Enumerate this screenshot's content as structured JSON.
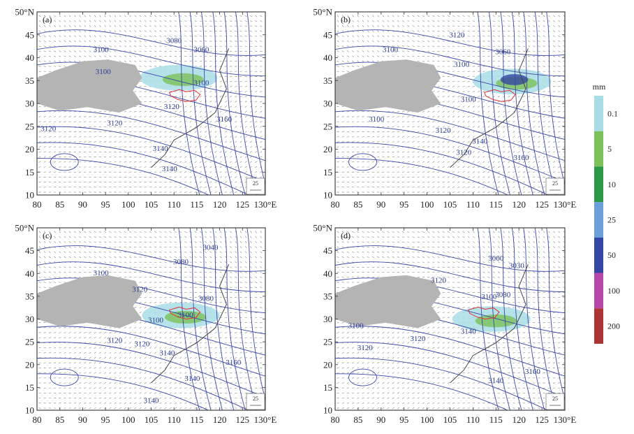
{
  "figure": {
    "x_ticks": [
      "80",
      "85",
      "90",
      "95",
      "100",
      "105",
      "110",
      "115",
      "120",
      "125",
      "130°E"
    ],
    "y_ticks": [
      "50°N",
      "45",
      "40",
      "35",
      "30",
      "25",
      "20",
      "15",
      "10"
    ],
    "wind_reference": "25",
    "colors": {
      "contour": "#3b47a8",
      "plateau": "#b4b4b4",
      "coast": "#444444",
      "basin_outline": "#e03030",
      "wind_vector": "#777777"
    },
    "panels": [
      {
        "label": "(a)",
        "contour_labels": [
          "3100",
          "3060",
          "3080",
          "3100",
          "3120",
          "3120",
          "3120",
          "3160",
          "3100",
          "3140",
          "3140"
        ]
      },
      {
        "label": "(b)",
        "contour_labels": [
          "3120",
          "3100",
          "3060",
          "3100",
          "3100",
          "3100",
          "3120",
          "3120",
          "3140",
          "3160"
        ]
      },
      {
        "label": "(c)",
        "contour_labels": [
          "3100",
          "3080",
          "3040",
          "3120",
          "3080",
          "3100",
          "3100",
          "3120",
          "3120",
          "3140",
          "3160",
          "3140",
          "3140"
        ]
      },
      {
        "label": "(d)",
        "contour_labels": [
          "3100",
          "3060",
          "3030",
          "3120",
          "3080",
          "3100",
          "3120",
          "3120",
          "3140",
          "3160",
          "3140"
        ]
      }
    ]
  },
  "legend": {
    "unit": "mm",
    "levels": [
      {
        "label": "0.1",
        "color": "#a9dde6"
      },
      {
        "label": "5",
        "color": "#7cc259"
      },
      {
        "label": "10",
        "color": "#2a9946"
      },
      {
        "label": "25",
        "color": "#6a9fd8"
      },
      {
        "label": "50",
        "color": "#3446a3"
      },
      {
        "label": "100",
        "color": "#b548a8"
      },
      {
        "label": "200",
        "color": "#ad3434"
      }
    ]
  }
}
